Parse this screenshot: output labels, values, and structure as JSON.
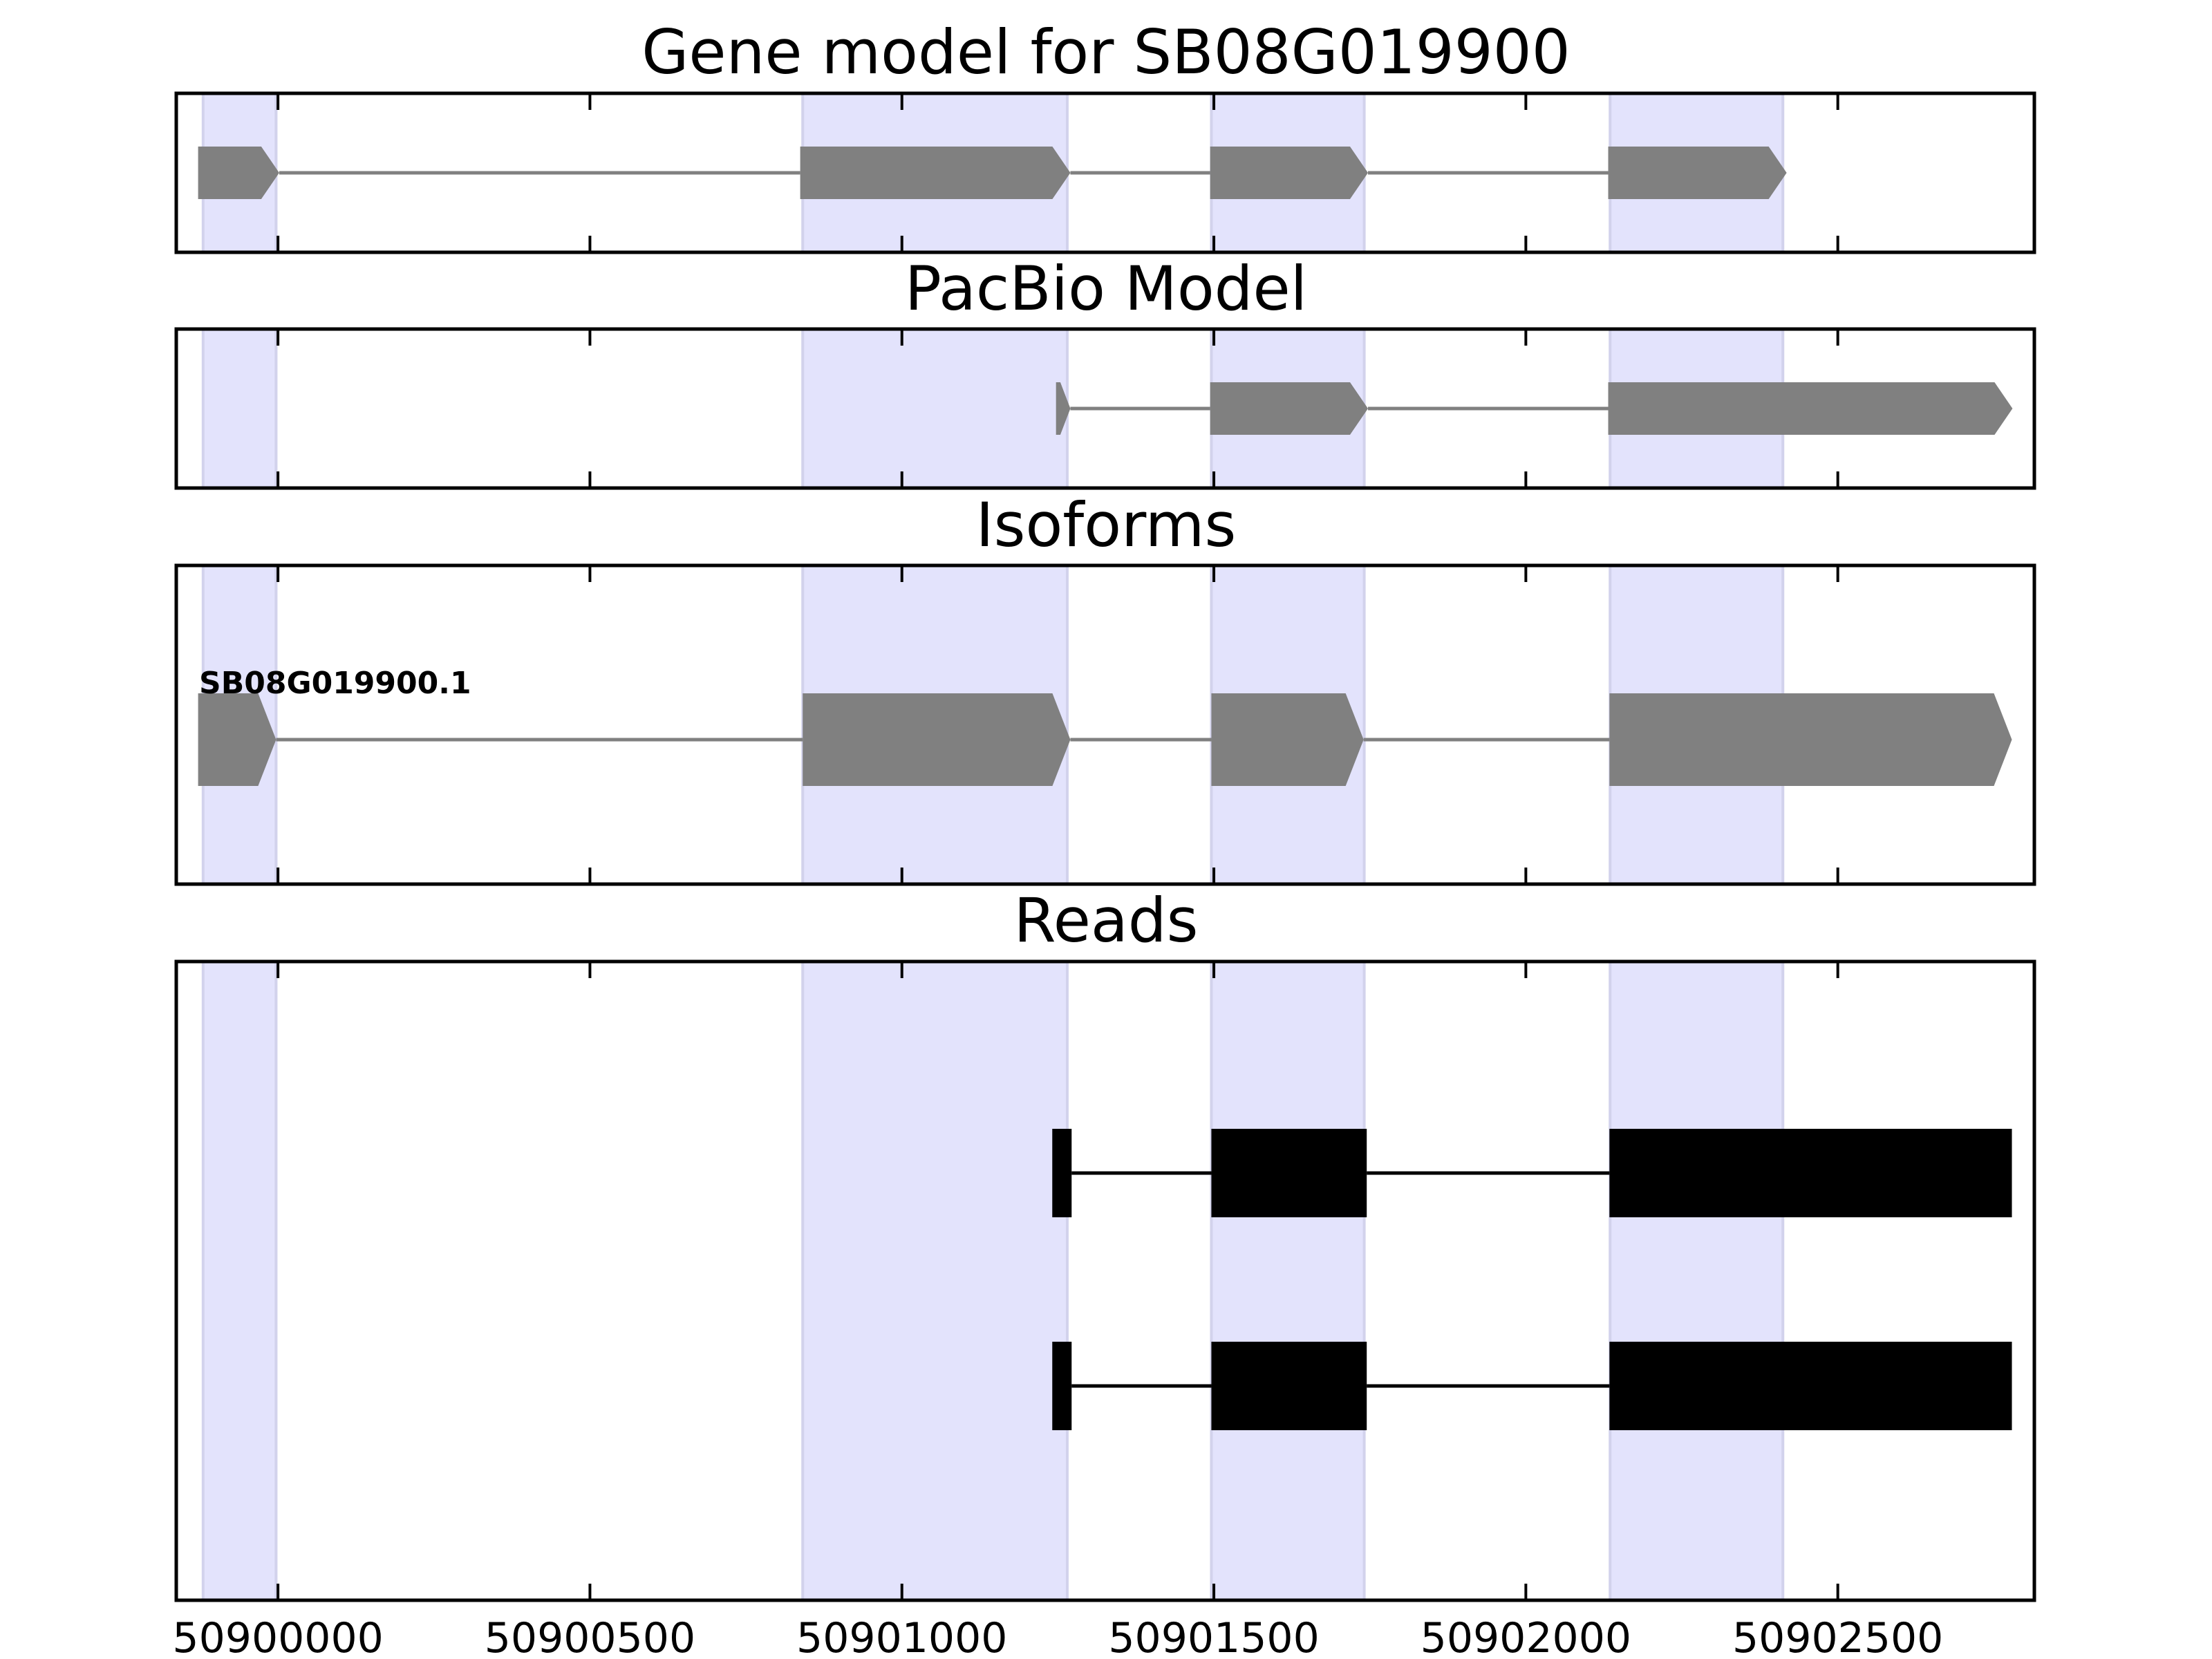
{
  "chart_data": {
    "type": "gene_track",
    "x_range": [
      50899837,
      50902815
    ],
    "x_ticks": [
      {
        "value": 50900000,
        "label": "50900000"
      },
      {
        "value": 50900500,
        "label": "50900500"
      },
      {
        "value": 50901000,
        "label": "50901000"
      },
      {
        "value": 50901500,
        "label": "50901500"
      },
      {
        "value": 50902000,
        "label": "50902000"
      },
      {
        "value": 50902500,
        "label": "50902500"
      }
    ],
    "highlight_color": "#e3e3fc",
    "highlight_regions": [
      [
        50899880,
        50899997
      ],
      [
        50900841,
        50901265
      ],
      [
        50901496,
        50901741
      ],
      [
        50902135,
        50902412
      ]
    ],
    "panels": [
      {
        "title": "Gene model for SB08G019900",
        "color": "#808080",
        "strand": "+",
        "isoform_label": "",
        "exons": [
          [
            50899872,
            50900002
          ],
          [
            50900837,
            50901270
          ],
          [
            50901494,
            50901747
          ],
          [
            50902132,
            50902418
          ]
        ]
      },
      {
        "title": "PacBio Model",
        "color": "#808080",
        "strand": "+",
        "isoform_label": "",
        "exons": [
          [
            50901247,
            50901270
          ],
          [
            50901494,
            50901747
          ],
          [
            50902132,
            50902780
          ]
        ]
      },
      {
        "title": "Isoforms",
        "color": "#808080",
        "strand": "+",
        "isoform_label": "SB08G019900.1",
        "exons": [
          [
            50899872,
            50899997
          ],
          [
            50900841,
            50901270
          ],
          [
            50901496,
            50901740
          ],
          [
            50902134,
            50902779
          ]
        ]
      },
      {
        "title": "Reads",
        "color": "#000000",
        "reads": [
          {
            "exons": [
              [
                50901241,
                50901272
              ],
              [
                50901496,
                50901745
              ],
              [
                50902134,
                50902779
              ]
            ]
          },
          {
            "exons": [
              [
                50901241,
                50901272
              ],
              [
                50901496,
                50901745
              ],
              [
                50902134,
                50902779
              ]
            ]
          }
        ]
      }
    ]
  }
}
